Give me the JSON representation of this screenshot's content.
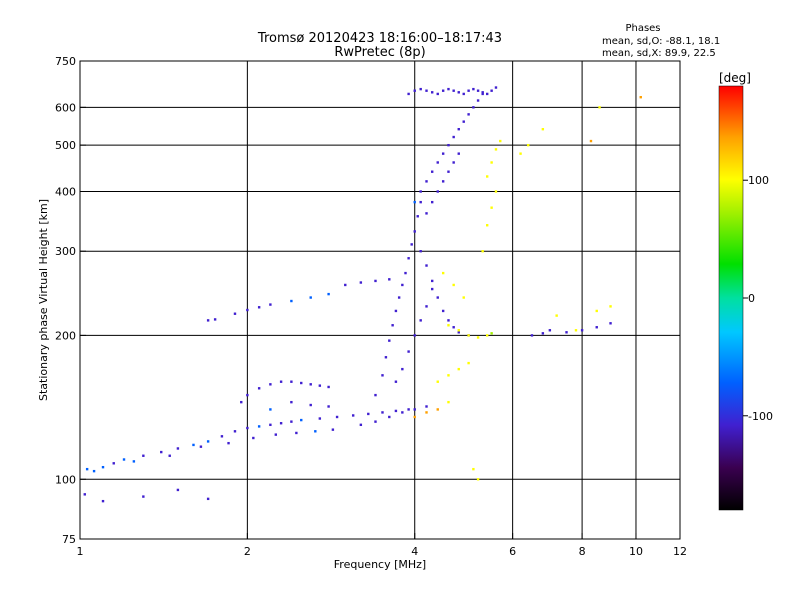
{
  "chart_data": {
    "type": "scatter",
    "title": "Tromsø 20120423 18:16:00–18:17:43",
    "subtitle": "RwPretec (8p)",
    "xlabel": "Frequency [MHz]",
    "ylabel": "Stationary phase Virtual Height [km]",
    "xscale": "log",
    "yscale": "log",
    "xlim": [
      1,
      12
    ],
    "ylim": [
      75,
      750
    ],
    "xticks": [
      1,
      2,
      4,
      6,
      8,
      10,
      12
    ],
    "yticks": [
      75,
      100,
      200,
      300,
      400,
      500,
      600,
      750
    ],
    "grid_x": [
      2,
      4,
      6,
      8,
      10
    ],
    "grid_y": [
      100,
      200,
      300,
      400,
      500,
      600
    ],
    "grid": true,
    "phases": {
      "title": "Phases",
      "line1": "mean, sd,O: -88.1, 18.1",
      "line2": "mean, sd,X:  89.9, 22.5"
    },
    "colorbar": {
      "label": "[deg]",
      "range": [
        -180,
        180
      ],
      "ticks": [
        100,
        0,
        -100
      ],
      "colors": [
        "#000000",
        "#3a0050",
        "#4020d0",
        "#0060ff",
        "#00c8ff",
        "#00e0a0",
        "#00e000",
        "#a0f000",
        "#ffff00",
        "#ffa000",
        "#ff0000"
      ]
    },
    "series": [
      {
        "values": [
          [
            1.03,
            105,
            -85
          ],
          [
            1.06,
            104,
            -80
          ],
          [
            1.1,
            106,
            -90
          ],
          [
            1.15,
            108,
            -95
          ],
          [
            1.2,
            110,
            -90
          ],
          [
            1.3,
            112,
            -92
          ],
          [
            1.4,
            114,
            -100
          ],
          [
            1.5,
            116,
            -95
          ],
          [
            1.6,
            118,
            -88
          ],
          [
            1.7,
            120,
            -90
          ],
          [
            1.8,
            123,
            -93
          ],
          [
            1.9,
            126,
            -98
          ],
          [
            2.0,
            128,
            -95
          ],
          [
            2.1,
            129,
            -90
          ],
          [
            2.2,
            130,
            -100
          ],
          [
            2.3,
            131,
            -95
          ],
          [
            2.4,
            132,
            -92
          ],
          [
            2.5,
            133,
            -90
          ],
          [
            2.7,
            134,
            -95
          ],
          [
            2.9,
            135,
            -100
          ],
          [
            3.1,
            136,
            -98
          ],
          [
            3.3,
            137,
            -96
          ],
          [
            3.5,
            138,
            -100
          ],
          [
            3.7,
            139,
            -95
          ],
          [
            3.9,
            140,
            -98
          ],
          [
            1.25,
            109,
            -90
          ],
          [
            1.45,
            112,
            -95
          ],
          [
            1.65,
            117,
            -92
          ],
          [
            1.85,
            119,
            -94
          ],
          [
            2.05,
            122,
            -98
          ],
          [
            2.25,
            124,
            -100
          ],
          [
            2.45,
            125,
            -96
          ],
          [
            2.65,
            126,
            -90
          ],
          [
            2.85,
            127,
            -92
          ],
          [
            1.95,
            145,
            -100
          ],
          [
            2.0,
            150,
            -95
          ],
          [
            2.1,
            155,
            -92
          ],
          [
            2.2,
            158,
            -96
          ],
          [
            2.3,
            160,
            -98
          ],
          [
            2.4,
            160,
            -94
          ],
          [
            2.5,
            159,
            -95
          ],
          [
            2.6,
            158,
            -100
          ],
          [
            2.7,
            157,
            -96
          ],
          [
            2.8,
            156,
            -92
          ],
          [
            2.2,
            140,
            -90
          ],
          [
            2.4,
            145,
            -95
          ],
          [
            2.6,
            143,
            -92
          ],
          [
            2.8,
            142,
            -96
          ],
          [
            3.2,
            130,
            -110
          ],
          [
            3.4,
            132,
            -115
          ],
          [
            3.6,
            135,
            -112
          ],
          [
            3.8,
            138,
            -118
          ],
          [
            4.0,
            140,
            -120
          ],
          [
            4.2,
            142,
            -115
          ],
          [
            3.4,
            150,
            -105
          ],
          [
            3.5,
            165,
            -110
          ],
          [
            3.55,
            180,
            -112
          ],
          [
            3.6,
            195,
            -115
          ],
          [
            3.65,
            210,
            -110
          ],
          [
            3.7,
            225,
            -108
          ],
          [
            3.75,
            240,
            -112
          ],
          [
            3.8,
            255,
            -115
          ],
          [
            3.85,
            270,
            -110
          ],
          [
            3.9,
            290,
            -105
          ],
          [
            3.95,
            310,
            -108
          ],
          [
            4.0,
            330,
            -110
          ],
          [
            4.05,
            355,
            -112
          ],
          [
            4.1,
            380,
            -110
          ],
          [
            3.7,
            160,
            -95
          ],
          [
            3.8,
            170,
            -100
          ],
          [
            3.9,
            185,
            -102
          ],
          [
            4.0,
            200,
            -98
          ],
          [
            4.1,
            215,
            -100
          ],
          [
            4.2,
            230,
            -96
          ],
          [
            4.3,
            250,
            -100
          ],
          [
            1.7,
            215,
            -95
          ],
          [
            1.75,
            216,
            -100
          ],
          [
            1.9,
            222,
            -96
          ],
          [
            2.0,
            226,
            -98
          ],
          [
            2.1,
            229,
            -95
          ],
          [
            2.2,
            232,
            -92
          ],
          [
            2.4,
            236,
            -90
          ],
          [
            2.6,
            240,
            -88
          ],
          [
            2.8,
            244,
            -85
          ],
          [
            3.0,
            255,
            -100
          ],
          [
            3.2,
            258,
            -102
          ],
          [
            3.4,
            260,
            -98
          ],
          [
            3.6,
            262,
            -100
          ],
          [
            4.0,
            380,
            -90
          ],
          [
            4.1,
            400,
            -95
          ],
          [
            4.2,
            420,
            -92
          ],
          [
            4.3,
            440,
            -98
          ],
          [
            4.4,
            460,
            -100
          ],
          [
            4.5,
            480,
            -96
          ],
          [
            4.6,
            500,
            -94
          ],
          [
            4.7,
            520,
            -92
          ],
          [
            4.8,
            540,
            -95
          ],
          [
            4.9,
            560,
            -100
          ],
          [
            5.0,
            580,
            -98
          ],
          [
            5.1,
            600,
            -95
          ],
          [
            5.2,
            620,
            -96
          ],
          [
            5.3,
            640,
            -92
          ],
          [
            3.9,
            640,
            -95
          ],
          [
            4.0,
            650,
            -98
          ],
          [
            4.1,
            655,
            -100
          ],
          [
            4.2,
            650,
            -96
          ],
          [
            4.3,
            645,
            -98
          ],
          [
            4.4,
            640,
            -95
          ],
          [
            4.5,
            650,
            -100
          ],
          [
            4.6,
            655,
            -96
          ],
          [
            4.7,
            650,
            -98
          ],
          [
            4.8,
            645,
            -95
          ],
          [
            4.9,
            640,
            -92
          ],
          [
            5.0,
            650,
            -96
          ],
          [
            5.1,
            655,
            -98
          ],
          [
            5.2,
            650,
            -100
          ],
          [
            5.3,
            645,
            -96
          ],
          [
            5.4,
            640,
            -95
          ],
          [
            5.5,
            650,
            -98
          ],
          [
            5.6,
            660,
            -96
          ],
          [
            4.2,
            360,
            -105
          ],
          [
            4.3,
            380,
            -108
          ],
          [
            4.4,
            400,
            -110
          ],
          [
            4.5,
            420,
            -105
          ],
          [
            4.6,
            440,
            -108
          ],
          [
            4.7,
            460,
            -110
          ],
          [
            4.8,
            480,
            -106
          ],
          [
            4.1,
            300,
            -100
          ],
          [
            4.2,
            280,
            -98
          ],
          [
            4.3,
            260,
            -95
          ],
          [
            4.4,
            240,
            -98
          ],
          [
            4.5,
            225,
            -100
          ],
          [
            4.6,
            215,
            -96
          ],
          [
            4.7,
            208,
            -100
          ],
          [
            4.8,
            203,
            -98
          ],
          [
            5.0,
            200,
            -95
          ],
          [
            6.5,
            200,
            -110
          ],
          [
            6.8,
            202,
            -105
          ],
          [
            7.0,
            205,
            -112
          ],
          [
            7.5,
            203,
            -108
          ],
          [
            8.0,
            205,
            -110
          ],
          [
            8.5,
            208,
            -106
          ],
          [
            9.0,
            212,
            -110
          ],
          [
            1.02,
            93,
            -100
          ],
          [
            1.1,
            90,
            -95
          ],
          [
            1.3,
            92,
            -98
          ],
          [
            1.5,
            95,
            -100
          ],
          [
            1.7,
            91,
            -96
          ]
        ]
      },
      {
        "values": [
          [
            4.6,
            210,
            95
          ],
          [
            4.8,
            205,
            90
          ],
          [
            5.0,
            200,
            92
          ],
          [
            5.2,
            198,
            96
          ],
          [
            5.4,
            200,
            90
          ],
          [
            5.5,
            202,
            88
          ],
          [
            4.4,
            160,
            100
          ],
          [
            4.6,
            165,
            95
          ],
          [
            4.8,
            170,
            92
          ],
          [
            5.0,
            175,
            98
          ],
          [
            4.0,
            135,
            130
          ],
          [
            4.2,
            138,
            140
          ],
          [
            4.4,
            140,
            135
          ],
          [
            4.6,
            145,
            125
          ],
          [
            5.4,
            430,
            100
          ],
          [
            5.5,
            460,
            95
          ],
          [
            5.6,
            490,
            92
          ],
          [
            5.7,
            510,
            96
          ],
          [
            5.6,
            400,
            100
          ],
          [
            5.5,
            370,
            98
          ],
          [
            5.4,
            340,
            95
          ],
          [
            5.3,
            300,
            92
          ],
          [
            6.2,
            480,
            95
          ],
          [
            6.4,
            500,
            90
          ],
          [
            6.8,
            540,
            98
          ],
          [
            7.2,
            220,
            100
          ],
          [
            7.8,
            205,
            92
          ],
          [
            8.5,
            225,
            95
          ],
          [
            9.0,
            230,
            98
          ],
          [
            4.5,
            270,
            90
          ],
          [
            4.7,
            255,
            95
          ],
          [
            4.9,
            240,
            98
          ],
          [
            5.1,
            105,
            110
          ],
          [
            5.2,
            100,
            115
          ],
          [
            8.6,
            600,
            120
          ],
          [
            8.3,
            510,
            130
          ],
          [
            10.2,
            630,
            140
          ]
        ]
      }
    ]
  }
}
